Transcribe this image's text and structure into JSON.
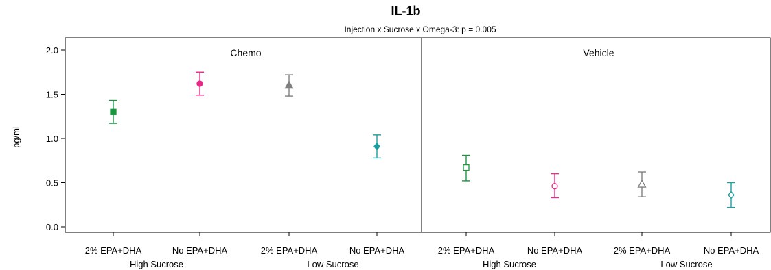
{
  "chart_data": {
    "type": "scatter",
    "title": "IL-1b",
    "subtitle": "Injection x Sucrose x Omega-3: p = 0.005",
    "ylabel": "pg/ml",
    "ylim": [
      0,
      2.0
    ],
    "yticks": [
      "0.0",
      "0.5",
      "1.0",
      "1.5",
      "2.0"
    ],
    "panels": [
      {
        "name": "Chemo",
        "groups": [
          "High Sucrose",
          "Low Sucrose"
        ],
        "points": [
          {
            "omega": "2% EPA+DHA",
            "group": "High Sucrose",
            "mean": 1.3,
            "lo": 1.17,
            "hi": 1.43,
            "marker": "square",
            "filled": true,
            "color": "#1a9641"
          },
          {
            "omega": "No EPA+DHA",
            "group": "High Sucrose",
            "mean": 1.62,
            "lo": 1.49,
            "hi": 1.75,
            "marker": "circle",
            "filled": true,
            "color": "#e7298a"
          },
          {
            "omega": "2% EPA+DHA",
            "group": "Low Sucrose",
            "mean": 1.6,
            "lo": 1.48,
            "hi": 1.72,
            "marker": "triangle",
            "filled": true,
            "color": "#7f7f7f"
          },
          {
            "omega": "No EPA+DHA",
            "group": "Low Sucrose",
            "mean": 0.91,
            "lo": 0.78,
            "hi": 1.04,
            "marker": "diamond",
            "filled": true,
            "color": "#1b9e9e"
          }
        ]
      },
      {
        "name": "Vehicle",
        "groups": [
          "High Sucrose",
          "Low Sucrose"
        ],
        "points": [
          {
            "omega": "2% EPA+DHA",
            "group": "High Sucrose",
            "mean": 0.67,
            "lo": 0.52,
            "hi": 0.81,
            "marker": "square",
            "filled": false,
            "color": "#1a9641"
          },
          {
            "omega": "No EPA+DHA",
            "group": "High Sucrose",
            "mean": 0.46,
            "lo": 0.33,
            "hi": 0.6,
            "marker": "circle",
            "filled": false,
            "color": "#e7298a"
          },
          {
            "omega": "2% EPA+DHA",
            "group": "Low Sucrose",
            "mean": 0.48,
            "lo": 0.34,
            "hi": 0.62,
            "marker": "triangle",
            "filled": false,
            "color": "#7f7f7f"
          },
          {
            "omega": "No EPA+DHA",
            "group": "Low Sucrose",
            "mean": 0.36,
            "lo": 0.22,
            "hi": 0.5,
            "marker": "diamond",
            "filled": false,
            "color": "#1b9e9e"
          }
        ]
      }
    ],
    "grid": false
  }
}
